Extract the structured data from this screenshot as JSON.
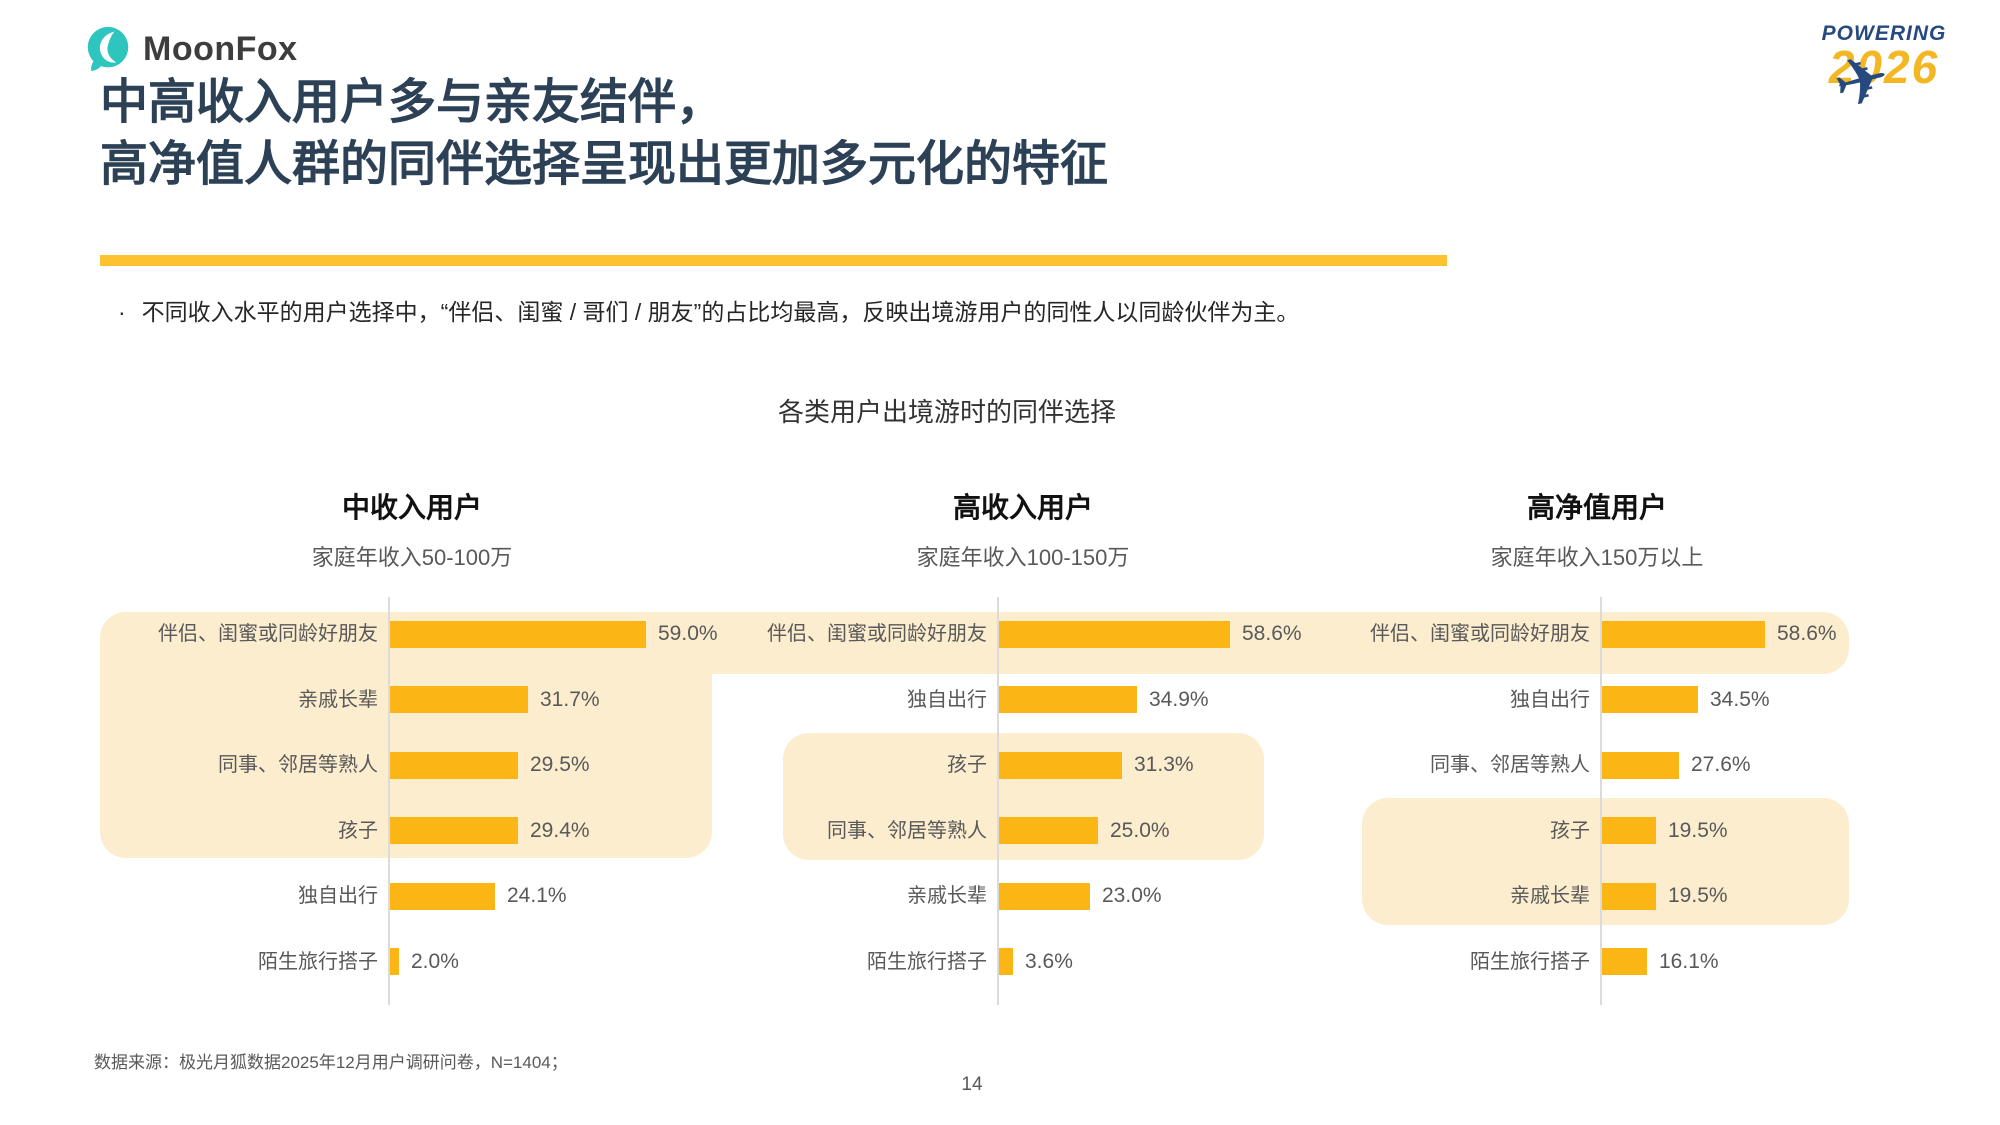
{
  "brand": {
    "logo_text": "MoonFox",
    "teal": "#2ec5bf",
    "logo_dark": "#3d3d3d"
  },
  "event_badge": {
    "line1": "POWERING",
    "line2": "2026",
    "navy": "#264a80",
    "yellow": "#f2b722"
  },
  "title": {
    "line1": "中高收入用户多与亲友结伴，",
    "line2": "高净值人群的同伴选择呈现出更加多元化的特征",
    "text_color": "#2d4156",
    "accent_color": "#fdc230"
  },
  "bullet": {
    "marker": "·",
    "text": "不同收入水平的用户选择中，“伴侣、闺蜜 / 哥们 / 朋友”的占比均最高，反映出境游用户的同性人以同龄伙伴为主。"
  },
  "chart_data": {
    "type": "bar",
    "orientation": "horizontal",
    "title": "各类用户出境游时的同伴选择",
    "value_unit": "%",
    "xlim": [
      0,
      65
    ],
    "grid": false,
    "legend": "none",
    "bar_color": "#fbb515",
    "highlight_color": "#fcedcf",
    "charts": [
      {
        "group": "中收入用户",
        "subtitle": "家庭年收入50-100万",
        "categories": [
          "伴侣、闺蜜或同龄好朋友",
          "亲戚长辈",
          "同事、邻居等熟人",
          "孩子",
          "独自出行",
          "陌生旅行搭子"
        ],
        "values": [
          59.0,
          31.7,
          29.5,
          29.4,
          24.1,
          2.0
        ],
        "value_labels": [
          "59.0%",
          "31.7%",
          "29.5%",
          "29.4%",
          "24.1%",
          "2.0%"
        ],
        "highlighted_rows": [
          0,
          1,
          2,
          3
        ]
      },
      {
        "group": "高收入用户",
        "subtitle": "家庭年收入100-150万",
        "categories": [
          "伴侣、闺蜜或同龄好朋友",
          "独自出行",
          "孩子",
          "同事、邻居等熟人",
          "亲戚长辈",
          "陌生旅行搭子"
        ],
        "values": [
          58.6,
          34.9,
          31.3,
          25.0,
          23.0,
          3.6
        ],
        "value_labels": [
          "58.6%",
          "34.9%",
          "31.3%",
          "25.0%",
          "23.0%",
          "3.6%"
        ],
        "highlighted_rows": [
          0,
          2,
          3
        ]
      },
      {
        "group": "高净值用户",
        "subtitle": "家庭年收入150万以上",
        "categories": [
          "伴侣、闺蜜或同龄好朋友",
          "独自出行",
          "同事、邻居等熟人",
          "孩子",
          "亲戚长辈",
          "陌生旅行搭子"
        ],
        "values": [
          58.6,
          34.5,
          27.6,
          19.5,
          19.5,
          16.1
        ],
        "value_labels": [
          "58.6%",
          "34.5%",
          "27.6%",
          "19.5%",
          "19.5%",
          "16.1%"
        ],
        "highlighted_rows": [
          0,
          3,
          4
        ]
      }
    ]
  },
  "footer": {
    "source": "数据来源：极光月狐数据2025年12月用户调研问卷，N=1404；",
    "page_number": "14"
  }
}
